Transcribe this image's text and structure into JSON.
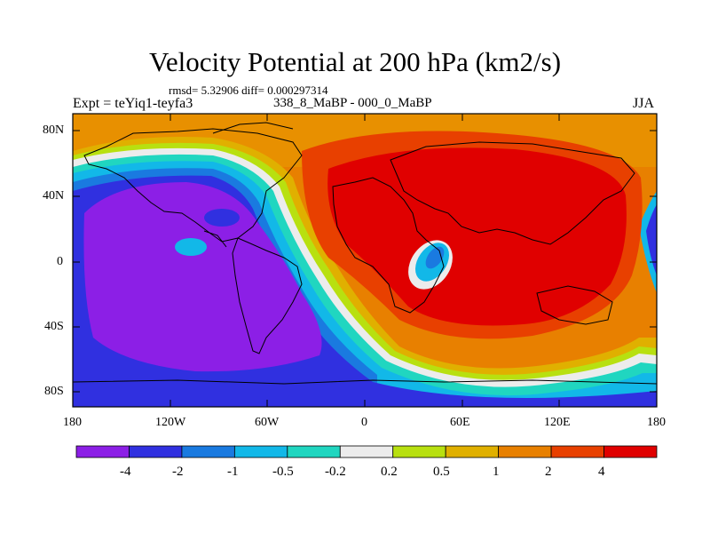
{
  "title": "Velocity Potential at 200 hPa (km2/s)",
  "stats": "rmsd= 5.32906 diff= 0.000297314",
  "experiment": "Expt = teYiq1-teyfa3",
  "comparison": "338_8_MaBP - 000_0_MaBP",
  "season": "JJA",
  "lat_labels": [
    "80N",
    "40N",
    "0",
    "40S",
    "80S"
  ],
  "lon_labels": [
    "180",
    "120W",
    "60W",
    "0",
    "60E",
    "120E",
    "180"
  ],
  "colorbar": {
    "labels": [
      "-4",
      "-2",
      "-1",
      "-0.5",
      "-0.2",
      "0.2",
      "0.5",
      "1",
      "2",
      "4"
    ],
    "colors": [
      "#8c1fe6",
      "#3030e0",
      "#1a7ae0",
      "#12b8e8",
      "#20d6c0",
      "#ececec",
      "#b8e010",
      "#e0b000",
      "#e88000",
      "#e84000",
      "#e00000"
    ]
  }
}
